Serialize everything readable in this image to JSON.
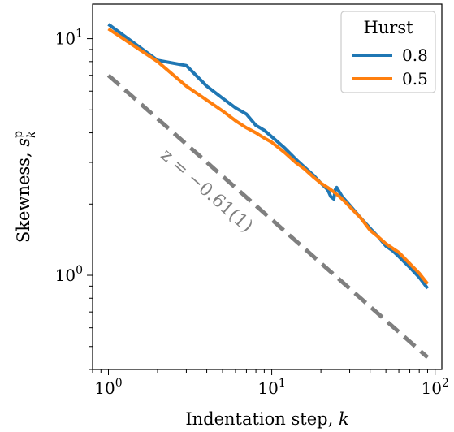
{
  "chart_data": {
    "type": "line",
    "xscale": "log",
    "yscale": "log",
    "xlim": [
      0.8,
      110
    ],
    "ylim": [
      0.4,
      14
    ],
    "xlabel": "Indentation step, ",
    "xlabel_var": "k",
    "ylabel": "Skewness, ",
    "ylabel_sym": "s",
    "ylabel_sup": "p",
    "ylabel_sub": "k",
    "x_ticks": [
      {
        "value": 1,
        "base": "10",
        "exp": "0"
      },
      {
        "value": 10,
        "base": "10",
        "exp": "1"
      },
      {
        "value": 100,
        "base": "10",
        "exp": "2"
      }
    ],
    "y_ticks": [
      {
        "value": 1,
        "base": "10",
        "exp": "0"
      },
      {
        "value": 10,
        "base": "10",
        "exp": "1"
      }
    ],
    "legend": {
      "title": "Hurst",
      "position": "top-right"
    },
    "series": [
      {
        "name": "0.8",
        "color": "#1f77b4",
        "x": [
          1,
          2,
          3,
          4,
          5,
          6,
          7,
          8,
          9,
          10,
          12,
          14,
          16,
          18,
          20,
          22,
          23,
          24,
          24.5,
          25,
          27,
          30,
          35,
          40,
          45,
          50,
          55,
          60,
          70,
          80,
          90
        ],
        "y": [
          11.5,
          8.1,
          7.7,
          6.3,
          5.6,
          5.1,
          4.8,
          4.3,
          4.1,
          3.85,
          3.45,
          3.1,
          2.85,
          2.65,
          2.45,
          2.3,
          2.15,
          2.1,
          2.3,
          2.35,
          2.15,
          1.98,
          1.75,
          1.58,
          1.45,
          1.33,
          1.27,
          1.2,
          1.08,
          0.98,
          0.88
        ]
      },
      {
        "name": "0.5",
        "color": "#ff7f0e",
        "x": [
          1,
          2,
          3,
          4,
          5,
          6,
          7,
          8,
          9,
          10,
          12,
          14,
          16,
          18,
          20,
          22,
          24,
          26,
          28,
          30,
          35,
          40,
          45,
          50,
          55,
          60,
          70,
          80,
          90
        ],
        "y": [
          11.0,
          8.0,
          6.3,
          5.5,
          4.95,
          4.5,
          4.2,
          4.0,
          3.8,
          3.65,
          3.3,
          3.0,
          2.8,
          2.6,
          2.45,
          2.35,
          2.25,
          2.15,
          2.05,
          1.95,
          1.75,
          1.55,
          1.45,
          1.36,
          1.3,
          1.25,
          1.12,
          1.02,
          0.92
        ]
      }
    ],
    "reference_line": {
      "label": "z = −0.61(1)",
      "color": "#7f7f7f",
      "style": "dashed",
      "x": [
        1,
        90
      ],
      "y": [
        7.0,
        0.45
      ]
    }
  }
}
